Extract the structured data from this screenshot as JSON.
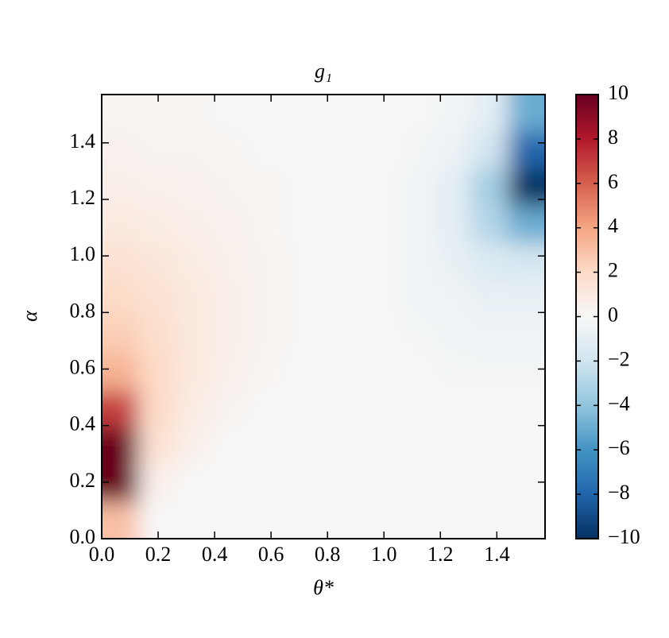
{
  "chart_data": {
    "type": "heatmap",
    "title": "g₁",
    "x_label": "θ*",
    "y_label": "α",
    "x": [
      0.065,
      0.196,
      0.327,
      0.458,
      0.589,
      0.72,
      0.851,
      0.982,
      1.113,
      1.244,
      1.374,
      1.505
    ],
    "y": [
      0.065,
      0.196,
      0.327,
      0.458,
      0.589,
      0.72,
      0.851,
      0.982,
      1.113,
      1.244,
      1.374,
      1.505
    ],
    "z": [
      [
        3,
        0,
        0,
        0,
        0,
        0,
        0,
        0,
        0,
        0,
        0,
        0
      ],
      [
        10,
        0.5,
        0,
        0,
        0,
        0,
        0,
        0,
        0,
        0,
        0,
        0
      ],
      [
        10,
        1.5,
        0.5,
        0,
        0,
        0,
        0,
        0,
        0,
        0,
        0,
        0
      ],
      [
        7,
        2,
        0.8,
        0.3,
        0,
        0,
        0,
        0,
        0,
        0,
        0,
        0
      ],
      [
        3.5,
        2,
        1,
        0.5,
        0.2,
        0,
        0,
        0,
        0,
        -0.2,
        -0.2,
        -0.2
      ],
      [
        2.5,
        1.8,
        1,
        0.6,
        0.3,
        0.1,
        0,
        0,
        -0.2,
        -0.3,
        -0.4,
        -0.4
      ],
      [
        2,
        1.5,
        1,
        0.6,
        0.3,
        0.1,
        0,
        -0.1,
        -0.3,
        -0.5,
        -0.8,
        -0.8
      ],
      [
        1.5,
        1.2,
        0.8,
        0.5,
        0.3,
        0.1,
        0,
        -0.1,
        -0.3,
        -0.8,
        -1.5,
        -1.8
      ],
      [
        1,
        0.8,
        0.6,
        0.4,
        0.2,
        0.1,
        0,
        -0.1,
        -0.3,
        -1,
        -3,
        -5
      ],
      [
        0.6,
        0.5,
        0.4,
        0.3,
        0.2,
        0.1,
        0,
        -0.1,
        -0.3,
        -1,
        -3.5,
        -10
      ],
      [
        0.4,
        0.3,
        0.3,
        0.2,
        0.1,
        0,
        0,
        0,
        -0.2,
        -0.6,
        -2,
        -8
      ],
      [
        0.2,
        0.2,
        0.2,
        0.1,
        0,
        0,
        0,
        0,
        -0.1,
        -0.3,
        -1,
        -5
      ]
    ],
    "xlim": [
      0,
      1.5708
    ],
    "ylim": [
      0,
      1.5708
    ],
    "xticks": [
      {
        "value": 0,
        "label": "0.0"
      },
      0.2,
      0.4,
      0.6,
      0.8,
      {
        "value": 1,
        "label": "1.0"
      },
      1.2,
      1.4
    ],
    "yticks": [
      {
        "value": 0,
        "label": "0.0"
      },
      0.2,
      0.4,
      0.6,
      0.8,
      {
        "value": 1,
        "label": "1.0"
      },
      1.2,
      1.4
    ],
    "zlim": [
      -10,
      10
    ],
    "zticks": [
      {
        "value": -10,
        "label": "−10"
      },
      {
        "value": -8,
        "label": "−8"
      },
      {
        "value": -6,
        "label": "−6"
      },
      {
        "value": -4,
        "label": "−4"
      },
      {
        "value": -2,
        "label": "−2"
      },
      0,
      2,
      4,
      6,
      8,
      10
    ],
    "colormap": [
      "#053061",
      "#2166ac",
      "#4393c3",
      "#92c5de",
      "#d1e5f0",
      "#f7f7f7",
      "#fddbc7",
      "#f4a582",
      "#d6604d",
      "#b2182b",
      "#67001f"
    ]
  }
}
